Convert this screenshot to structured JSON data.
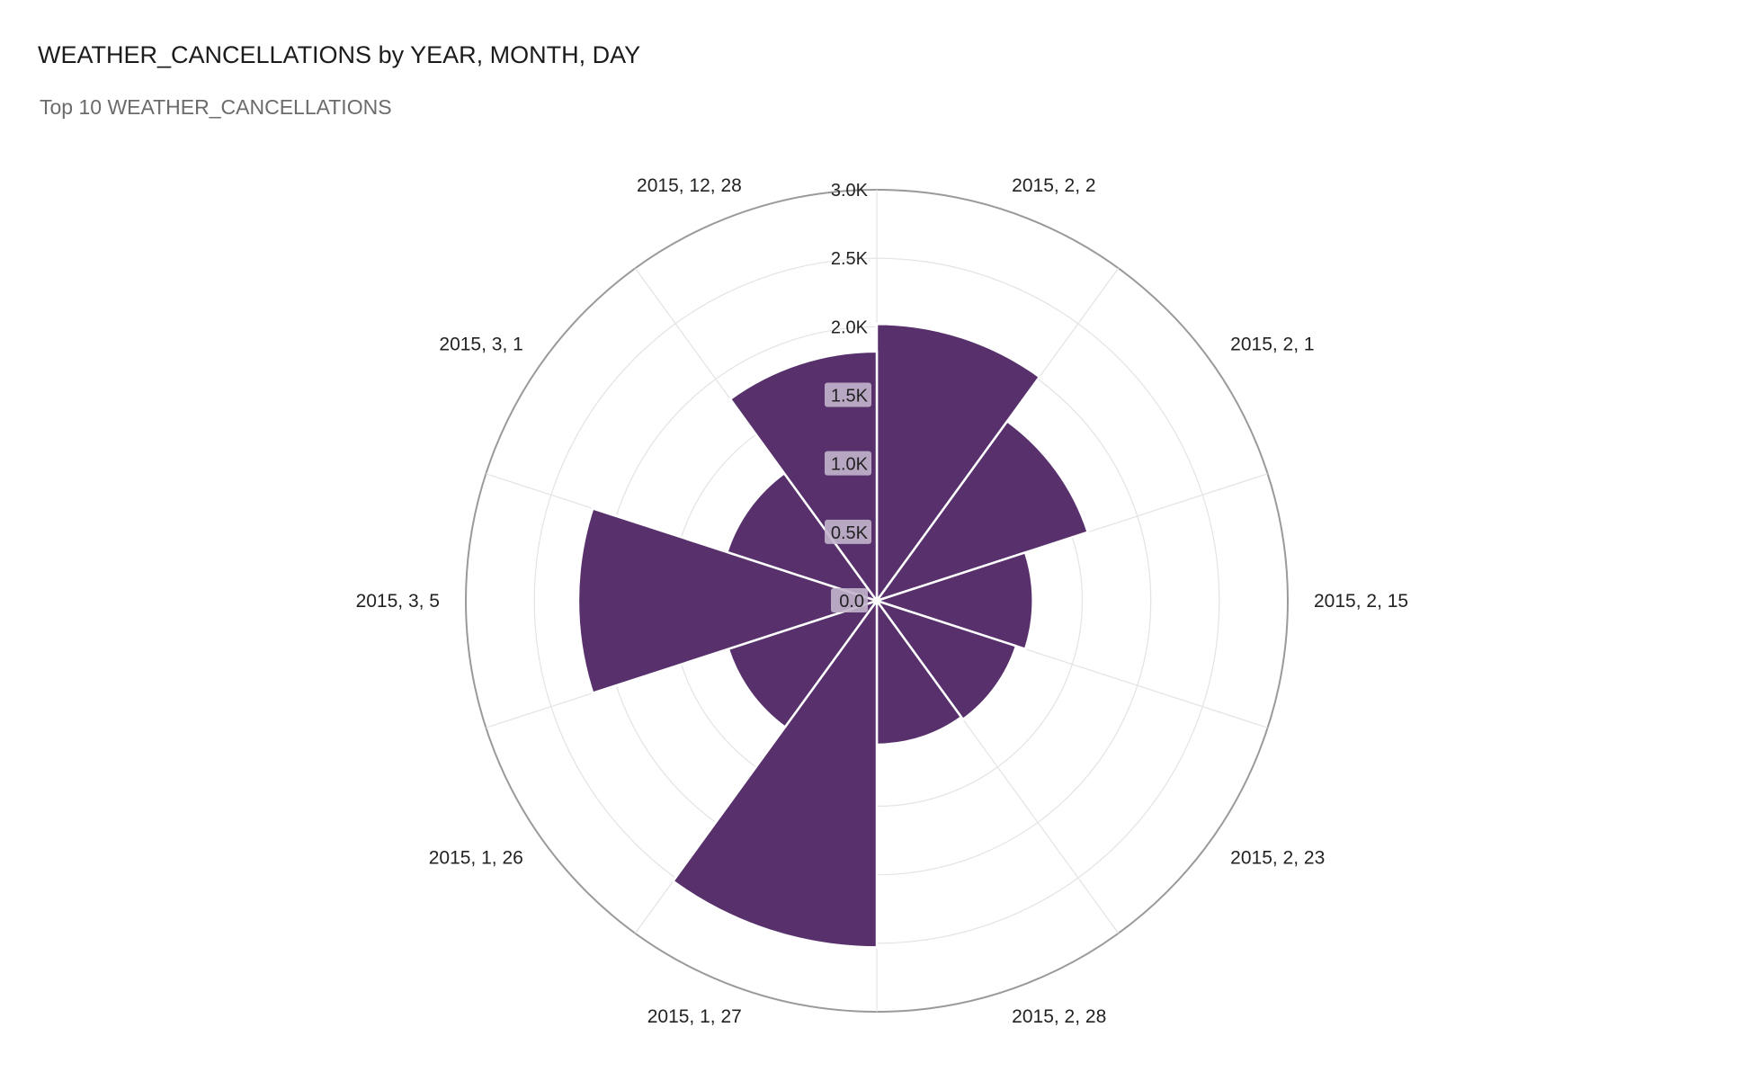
{
  "header": {
    "title": "WEATHER_CANCELLATIONS by YEAR, MONTH, DAY",
    "subtitle": "Top 10 WEATHER_CANCELLATIONS"
  },
  "colors": {
    "bar": "#57306c",
    "grid": "#e3e3e3",
    "outer_ring": "#9a9a9a",
    "tick_bg": "#c2b5cc"
  },
  "chart_data": {
    "type": "bar",
    "polar": true,
    "title": "WEATHER_CANCELLATIONS by YEAR, MONTH, DAY",
    "subtitle": "Top 10 WEATHER_CANCELLATIONS",
    "categories": [
      "2015, 2, 2",
      "2015, 2, 1",
      "2015, 2, 15",
      "2015, 2, 23",
      "2015, 2, 28",
      "2015, 1, 27",
      "2015, 1, 26",
      "2015, 3, 5",
      "2015, 3, 1",
      "2015, 12, 28"
    ],
    "values": [
      2020,
      1620,
      1140,
      1070,
      1050,
      2530,
      1140,
      2180,
      1150,
      1820
    ],
    "radial_ticks": [
      "0.0",
      "0.5K",
      "1.0K",
      "1.5K",
      "2.0K",
      "2.5K",
      "3.0K"
    ],
    "radial_tick_values": [
      0,
      500,
      1000,
      1500,
      2000,
      2500,
      3000
    ],
    "rmax": 3000,
    "grid": true,
    "legend": "none"
  }
}
